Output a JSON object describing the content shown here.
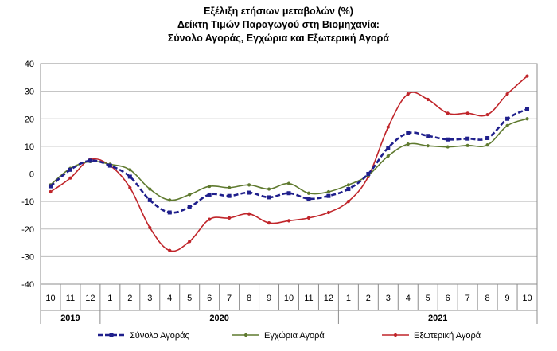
{
  "chart_data": {
    "type": "line",
    "title": "Εξέλιξη ετήσιων μεταβολών (%)",
    "subtitle": [
      "Δείκτη Τιμών Παραγωγού στη Βιομηχανία:",
      "Σύνολο Αγοράς, Εγχώρια και Εξωτερική Αγορά"
    ],
    "x": [
      "10",
      "11",
      "12",
      "1",
      "2",
      "3",
      "4",
      "5",
      "6",
      "7",
      "8",
      "9",
      "10",
      "11",
      "12",
      "1",
      "2",
      "3",
      "4",
      "5",
      "6",
      "7",
      "8",
      "9",
      "10"
    ],
    "year_groups": [
      {
        "label": "2019",
        "start": 0,
        "end": 2
      },
      {
        "label": "2020",
        "start": 3,
        "end": 14
      },
      {
        "label": "2021",
        "start": 15,
        "end": 24
      }
    ],
    "ylim": [
      -40,
      40
    ],
    "yticks": [
      -40,
      -30,
      -20,
      -10,
      0,
      10,
      20,
      30,
      40
    ],
    "grid": true,
    "legend_position": "bottom",
    "series": [
      {
        "name": "Σύνολο Αγοράς",
        "color": "#1f1f8c",
        "style": "dashed",
        "marker": "square",
        "values": [
          -4.5,
          1.5,
          4.8,
          3.0,
          -1.0,
          -9.5,
          -14.0,
          -12.0,
          -7.5,
          -8.0,
          -6.8,
          -8.5,
          -7.0,
          -9.0,
          -8.0,
          -5.5,
          0.0,
          9.5,
          14.8,
          13.8,
          12.5,
          12.8,
          13.0,
          20.0,
          23.5
        ]
      },
      {
        "name": "Εγχώρια Αγορά",
        "color": "#5f7a2f",
        "style": "solid",
        "marker": "circle",
        "values": [
          -4.0,
          2.0,
          4.5,
          3.5,
          1.5,
          -5.5,
          -9.5,
          -7.5,
          -4.5,
          -5.0,
          -4.0,
          -5.5,
          -3.5,
          -7.0,
          -6.5,
          -4.0,
          -0.5,
          6.5,
          10.8,
          10.2,
          9.8,
          10.3,
          10.5,
          17.5,
          20.0
        ]
      },
      {
        "name": "Εξωτερική Αγορά",
        "color": "#c0252a",
        "style": "solid",
        "marker": "circle",
        "values": [
          -6.5,
          -1.5,
          5.2,
          3.0,
          -5.0,
          -19.5,
          -27.8,
          -24.5,
          -16.5,
          -16.0,
          -14.5,
          -17.8,
          -17.0,
          -16.0,
          -14.0,
          -10.0,
          -1.0,
          17.0,
          29.0,
          27.0,
          22.0,
          22.0,
          21.5,
          29.0,
          35.5
        ]
      }
    ]
  }
}
